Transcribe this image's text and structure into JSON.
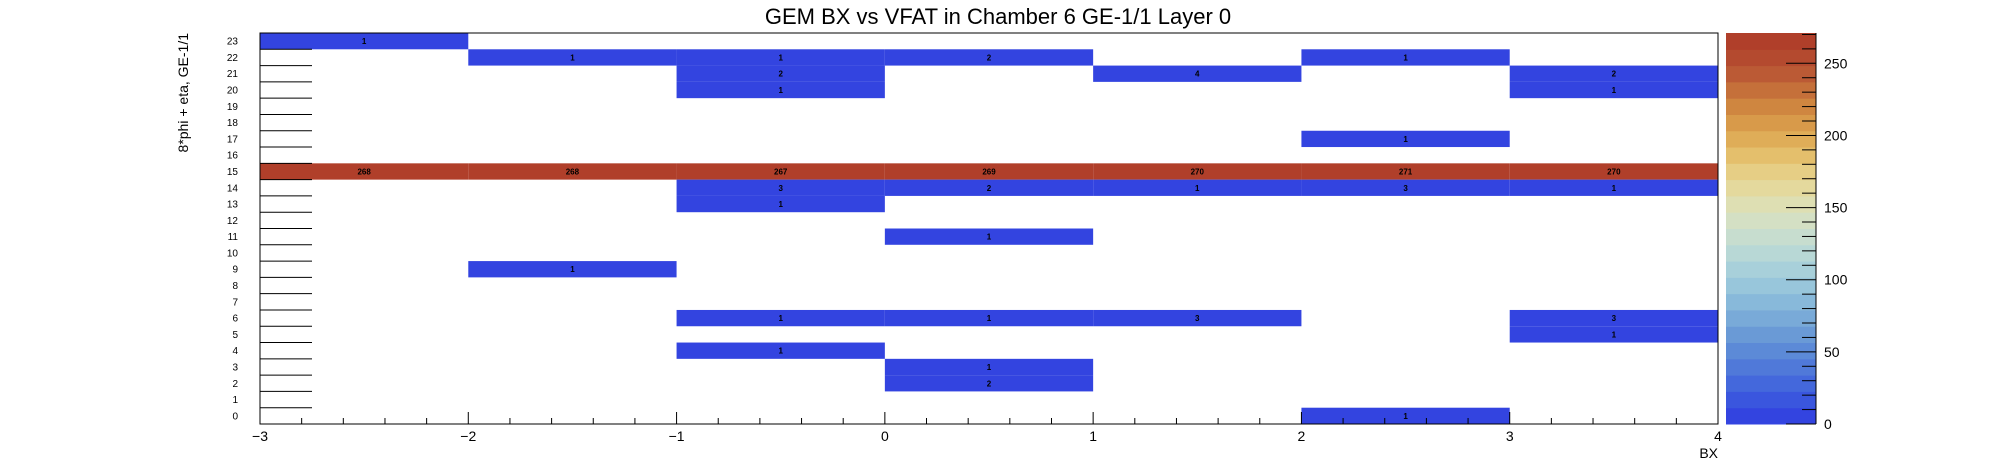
{
  "chart_data": {
    "type": "heatmap",
    "title": "GEM BX vs VFAT in Chamber 6 GE-1/1 Layer 0",
    "xlabel": "BX",
    "ylabel": "8*phi + eta, GE-1/1",
    "xlim": [
      -3,
      4
    ],
    "ylim": [
      0,
      24
    ],
    "x_ticks": [
      -3,
      -2,
      -1,
      0,
      1,
      2,
      3,
      4
    ],
    "x_tick_labels": [
      "−3",
      "−2",
      "−1",
      "0",
      "1",
      "2",
      "3",
      "4"
    ],
    "y_ticks": [
      0,
      1,
      2,
      3,
      4,
      5,
      6,
      7,
      8,
      9,
      10,
      11,
      12,
      13,
      14,
      15,
      16,
      17,
      18,
      19,
      20,
      21,
      22,
      23
    ],
    "y_tick_labels": [
      "0",
      "1",
      "2",
      "3",
      "4",
      "5",
      "6",
      "7",
      "8",
      "9",
      "10",
      "11",
      "12",
      "13",
      "14",
      "15",
      "16",
      "17",
      "18",
      "19",
      "20",
      "21",
      "22",
      "23"
    ],
    "zlim": [
      0,
      271
    ],
    "z_ticks": [
      0,
      50,
      100,
      150,
      200,
      250
    ],
    "z_tick_labels": [
      "0",
      "50",
      "100",
      "150",
      "200",
      "250"
    ],
    "palette": [
      "#3344e0",
      "#3a56de",
      "#4468dc",
      "#5079d9",
      "#5c8ad7",
      "#6a9ad6",
      "#79aad8",
      "#88b9da",
      "#98c6db",
      "#a8d0da",
      "#b8d8d6",
      "#c7ddcf",
      "#d4e0c4",
      "#dedfb3",
      "#e4d99d",
      "#e6ce85",
      "#e4bf6c",
      "#dfad58",
      "#d89a4a",
      "#cf8640",
      "#c5703a",
      "#bb5a35",
      "#b44a2f",
      "#b03f2a"
    ],
    "cells": [
      {
        "bx": -3,
        "y": 23,
        "value": 1
      },
      {
        "bx": -2,
        "y": 22,
        "value": 1
      },
      {
        "bx": -1,
        "y": 22,
        "value": 1
      },
      {
        "bx": 0,
        "y": 22,
        "value": 2
      },
      {
        "bx": 2,
        "y": 22,
        "value": 1
      },
      {
        "bx": -1,
        "y": 21,
        "value": 2
      },
      {
        "bx": 1,
        "y": 21,
        "value": 4
      },
      {
        "bx": 3,
        "y": 21,
        "value": 2
      },
      {
        "bx": -1,
        "y": 20,
        "value": 1
      },
      {
        "bx": 3,
        "y": 20,
        "value": 1
      },
      {
        "bx": 2,
        "y": 17,
        "value": 1
      },
      {
        "bx": -3,
        "y": 15,
        "value": 268
      },
      {
        "bx": -2,
        "y": 15,
        "value": 268
      },
      {
        "bx": -1,
        "y": 15,
        "value": 267
      },
      {
        "bx": 0,
        "y": 15,
        "value": 269
      },
      {
        "bx": 1,
        "y": 15,
        "value": 270
      },
      {
        "bx": 2,
        "y": 15,
        "value": 271
      },
      {
        "bx": 3,
        "y": 15,
        "value": 270
      },
      {
        "bx": -1,
        "y": 14,
        "value": 3
      },
      {
        "bx": 0,
        "y": 14,
        "value": 2
      },
      {
        "bx": 1,
        "y": 14,
        "value": 1
      },
      {
        "bx": 2,
        "y": 14,
        "value": 3
      },
      {
        "bx": 3,
        "y": 14,
        "value": 1
      },
      {
        "bx": -1,
        "y": 13,
        "value": 1
      },
      {
        "bx": 0,
        "y": 11,
        "value": 1
      },
      {
        "bx": -2,
        "y": 9,
        "value": 1
      },
      {
        "bx": -1,
        "y": 6,
        "value": 1
      },
      {
        "bx": 0,
        "y": 6,
        "value": 1
      },
      {
        "bx": 1,
        "y": 6,
        "value": 3
      },
      {
        "bx": 3,
        "y": 6,
        "value": 3
      },
      {
        "bx": 3,
        "y": 5,
        "value": 1
      },
      {
        "bx": -1,
        "y": 4,
        "value": 1
      },
      {
        "bx": 0,
        "y": 3,
        "value": 1
      },
      {
        "bx": 0,
        "y": 2,
        "value": 2
      },
      {
        "bx": 2,
        "y": 0,
        "value": 1
      }
    ],
    "legend": "colorbar-right",
    "grid": false
  }
}
